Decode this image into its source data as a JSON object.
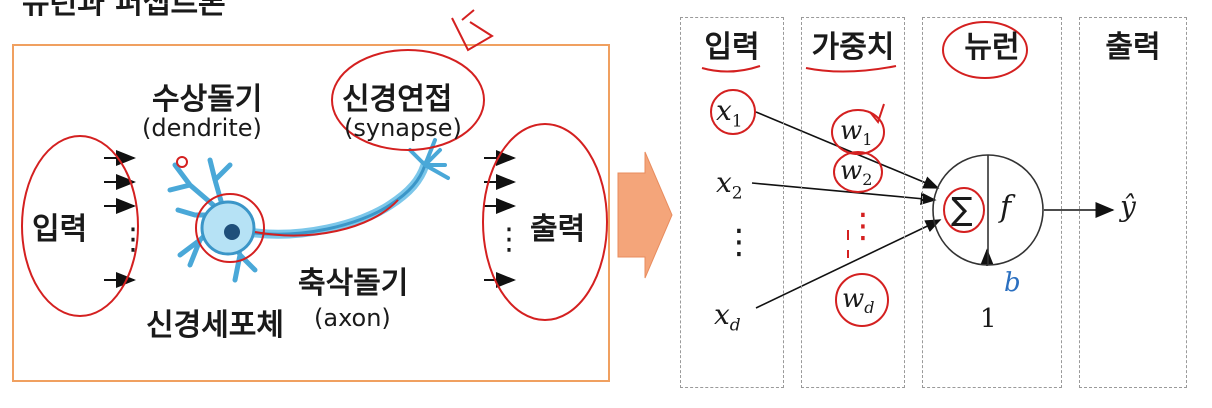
{
  "title_fragment": "뉴런과 퍼셉트론",
  "bio": {
    "input": "입력",
    "output": "출력",
    "dendrite_ko": "수상돌기",
    "dendrite_en": "(dendrite)",
    "synapse_ko": "신경연접",
    "synapse_en": "(synapse)",
    "axon_ko": "축삭돌기",
    "axon_en": "(axon)",
    "soma_ko": "신경세포체",
    "dots": "⋮"
  },
  "perceptron": {
    "columns": [
      "입력",
      "가중치",
      "뉴런",
      "출력"
    ],
    "inputs": [
      "x1",
      "x2",
      "⋮",
      "xd"
    ],
    "weights": [
      "w1",
      "w2",
      "⋮",
      "wd"
    ],
    "sum_symbol": "∑",
    "activation": "f",
    "bias": "b",
    "bias_input": "1",
    "output": "ŷ"
  },
  "colors": {
    "frame": "#f0a060",
    "annotation": "#d42020",
    "bias": "#2a6fc0",
    "neuron": "#4aa8d8"
  }
}
